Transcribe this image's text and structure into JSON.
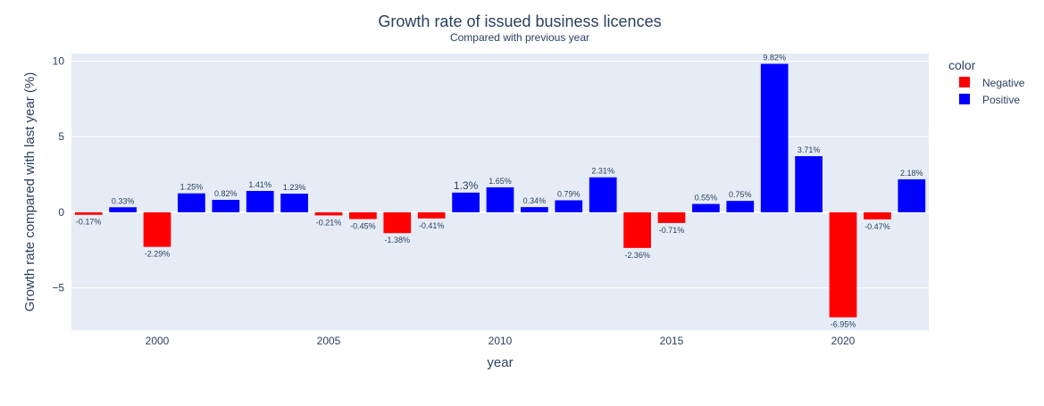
{
  "chart_data": {
    "type": "bar",
    "title": "Growth rate of issued business licences",
    "subtitle": "Compared with previous year",
    "xlabel": "year",
    "ylabel": "Growth rate compared with last year (%)",
    "xlim": [
      1997.5,
      2022.5
    ],
    "ylim": [
      -7.8,
      10.5
    ],
    "x_ticks": [
      2000,
      2005,
      2010,
      2015,
      2020
    ],
    "y_ticks": [
      -5,
      0,
      5,
      10
    ],
    "y_tick_labels": [
      "−5",
      "0",
      "5",
      "10"
    ],
    "grid": true,
    "plot_background": "#e5ecf6",
    "legend": {
      "title": "color",
      "position": "right",
      "entries": [
        {
          "name": "Negative",
          "color": "#ff0000"
        },
        {
          "name": "Positive",
          "color": "#0000ff"
        }
      ]
    },
    "bars": [
      {
        "year": 1998,
        "value": -0.17,
        "label": "-0.17%"
      },
      {
        "year": 1999,
        "value": 0.33,
        "label": "0.33%"
      },
      {
        "year": 2000,
        "value": -2.29,
        "label": "-2.29%"
      },
      {
        "year": 2001,
        "value": 1.25,
        "label": "1.25%"
      },
      {
        "year": 2002,
        "value": 0.82,
        "label": "0.82%"
      },
      {
        "year": 2003,
        "value": 1.41,
        "label": "1.41%"
      },
      {
        "year": 2004,
        "value": 1.23,
        "label": "1.23%"
      },
      {
        "year": 2005,
        "value": -0.21,
        "label": "-0.21%"
      },
      {
        "year": 2006,
        "value": -0.45,
        "label": "-0.45%"
      },
      {
        "year": 2007,
        "value": -1.38,
        "label": "-1.38%"
      },
      {
        "year": 2008,
        "value": -0.41,
        "label": "-0.41%"
      },
      {
        "year": 2009,
        "value": 1.3,
        "label": "1.3%"
      },
      {
        "year": 2010,
        "value": 1.65,
        "label": "1.65%"
      },
      {
        "year": 2011,
        "value": 0.34,
        "label": "0.34%"
      },
      {
        "year": 2012,
        "value": 0.79,
        "label": "0.79%"
      },
      {
        "year": 2013,
        "value": 2.31,
        "label": "2.31%"
      },
      {
        "year": 2014,
        "value": -2.36,
        "label": "-2.36%"
      },
      {
        "year": 2015,
        "value": -0.71,
        "label": "-0.71%"
      },
      {
        "year": 2016,
        "value": 0.55,
        "label": "0.55%"
      },
      {
        "year": 2017,
        "value": 0.75,
        "label": "0.75%"
      },
      {
        "year": 2018,
        "value": 9.82,
        "label": "9.82%"
      },
      {
        "year": 2019,
        "value": 3.71,
        "label": "3.71%"
      },
      {
        "year": 2020,
        "value": -6.95,
        "label": "-6.95%"
      },
      {
        "year": 2021,
        "value": -0.47,
        "label": "-0.47%"
      },
      {
        "year": 2022,
        "value": 2.18,
        "label": "2.18%"
      }
    ]
  }
}
